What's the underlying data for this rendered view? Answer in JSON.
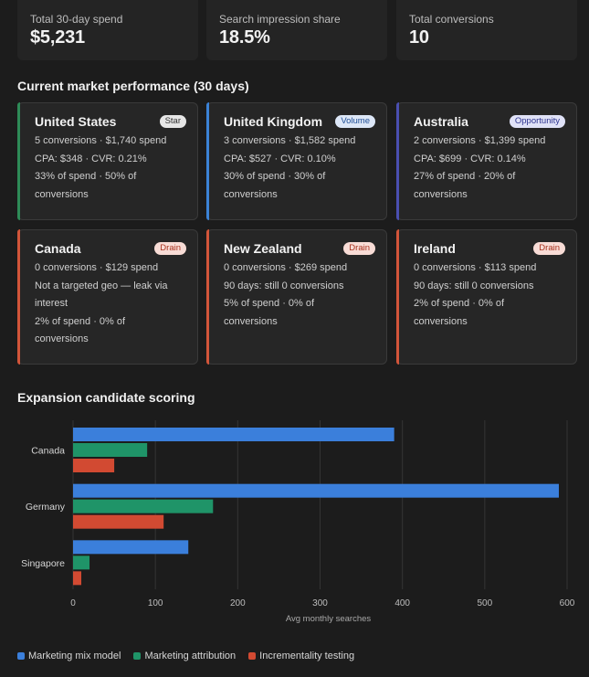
{
  "metrics": [
    {
      "label": "Total 30-day spend",
      "value": "$5,231"
    },
    {
      "label": "Search impression share",
      "value": "18.5%"
    },
    {
      "label": "Total conversions",
      "value": "10"
    }
  ],
  "sections": {
    "market_title": "Current market performance (30 days)",
    "expansion_title": "Expansion candidate scoring"
  },
  "markets": [
    {
      "name": "United States",
      "badge": "Star",
      "accent": "#2e8b57",
      "lines": [
        "5 conversions · $1,740 spend",
        "CPA: $348 · CVR: 0.21%",
        "33% of spend · 50% of",
        "conversions"
      ]
    },
    {
      "name": "United Kingdom",
      "badge": "Volume",
      "accent": "#3b82d6",
      "lines": [
        "3 conversions · $1,582 spend",
        "CPA: $527 · CVR: 0.10%",
        "30% of spend · 30% of",
        "conversions"
      ]
    },
    {
      "name": "Australia",
      "badge": "Opportunity",
      "accent": "#4a4fb0",
      "lines": [
        "2 conversions · $1,399 spend",
        "CPA: $699 · CVR: 0.14%",
        "27% of spend · 20% of",
        "conversions"
      ]
    },
    {
      "name": "Canada",
      "badge": "Drain",
      "accent": "#d2553a",
      "lines": [
        "0 conversions · $129 spend",
        "Not a targeted geo — leak via",
        "interest",
        "2% of spend · 0% of",
        "conversions"
      ]
    },
    {
      "name": "New Zealand",
      "badge": "Drain",
      "accent": "#d2553a",
      "lines": [
        "0 conversions · $269 spend",
        "90 days: still 0 conversions",
        "5% of spend · 0% of",
        "conversions"
      ]
    },
    {
      "name": "Ireland",
      "badge": "Drain",
      "accent": "#d2553a",
      "lines": [
        "0 conversions · $113 spend",
        "90 days: still 0 conversions",
        "2% of spend · 0% of",
        "conversions"
      ]
    }
  ],
  "badge_styles": {
    "Star": {
      "bg": "#e6e6e6",
      "fg": "#333333"
    },
    "Volume": {
      "bg": "#dde7f7",
      "fg": "#1f4e96"
    },
    "Opportunity": {
      "bg": "#e0e2f7",
      "fg": "#2f3590"
    },
    "Drain": {
      "bg": "#f8dcd6",
      "fg": "#a8321e"
    }
  },
  "chart_data": {
    "type": "bar",
    "orientation": "horizontal",
    "categories": [
      "Canada",
      "Germany",
      "Singapore"
    ],
    "series": [
      {
        "name": "Marketing mix model",
        "color": "#3b7fdb",
        "values": [
          390,
          590,
          140
        ]
      },
      {
        "name": "Marketing attribution",
        "color": "#1f9468",
        "values": [
          90,
          170,
          20
        ]
      },
      {
        "name": "Incrementality testing",
        "color": "#d24a32",
        "values": [
          50,
          110,
          10
        ]
      }
    ],
    "xlabel": "Avg monthly searches",
    "xlim": [
      0,
      600
    ],
    "xticks": [
      0,
      100,
      200,
      300,
      400,
      500,
      600
    ],
    "grid": true,
    "legend": "bottom-left"
  }
}
